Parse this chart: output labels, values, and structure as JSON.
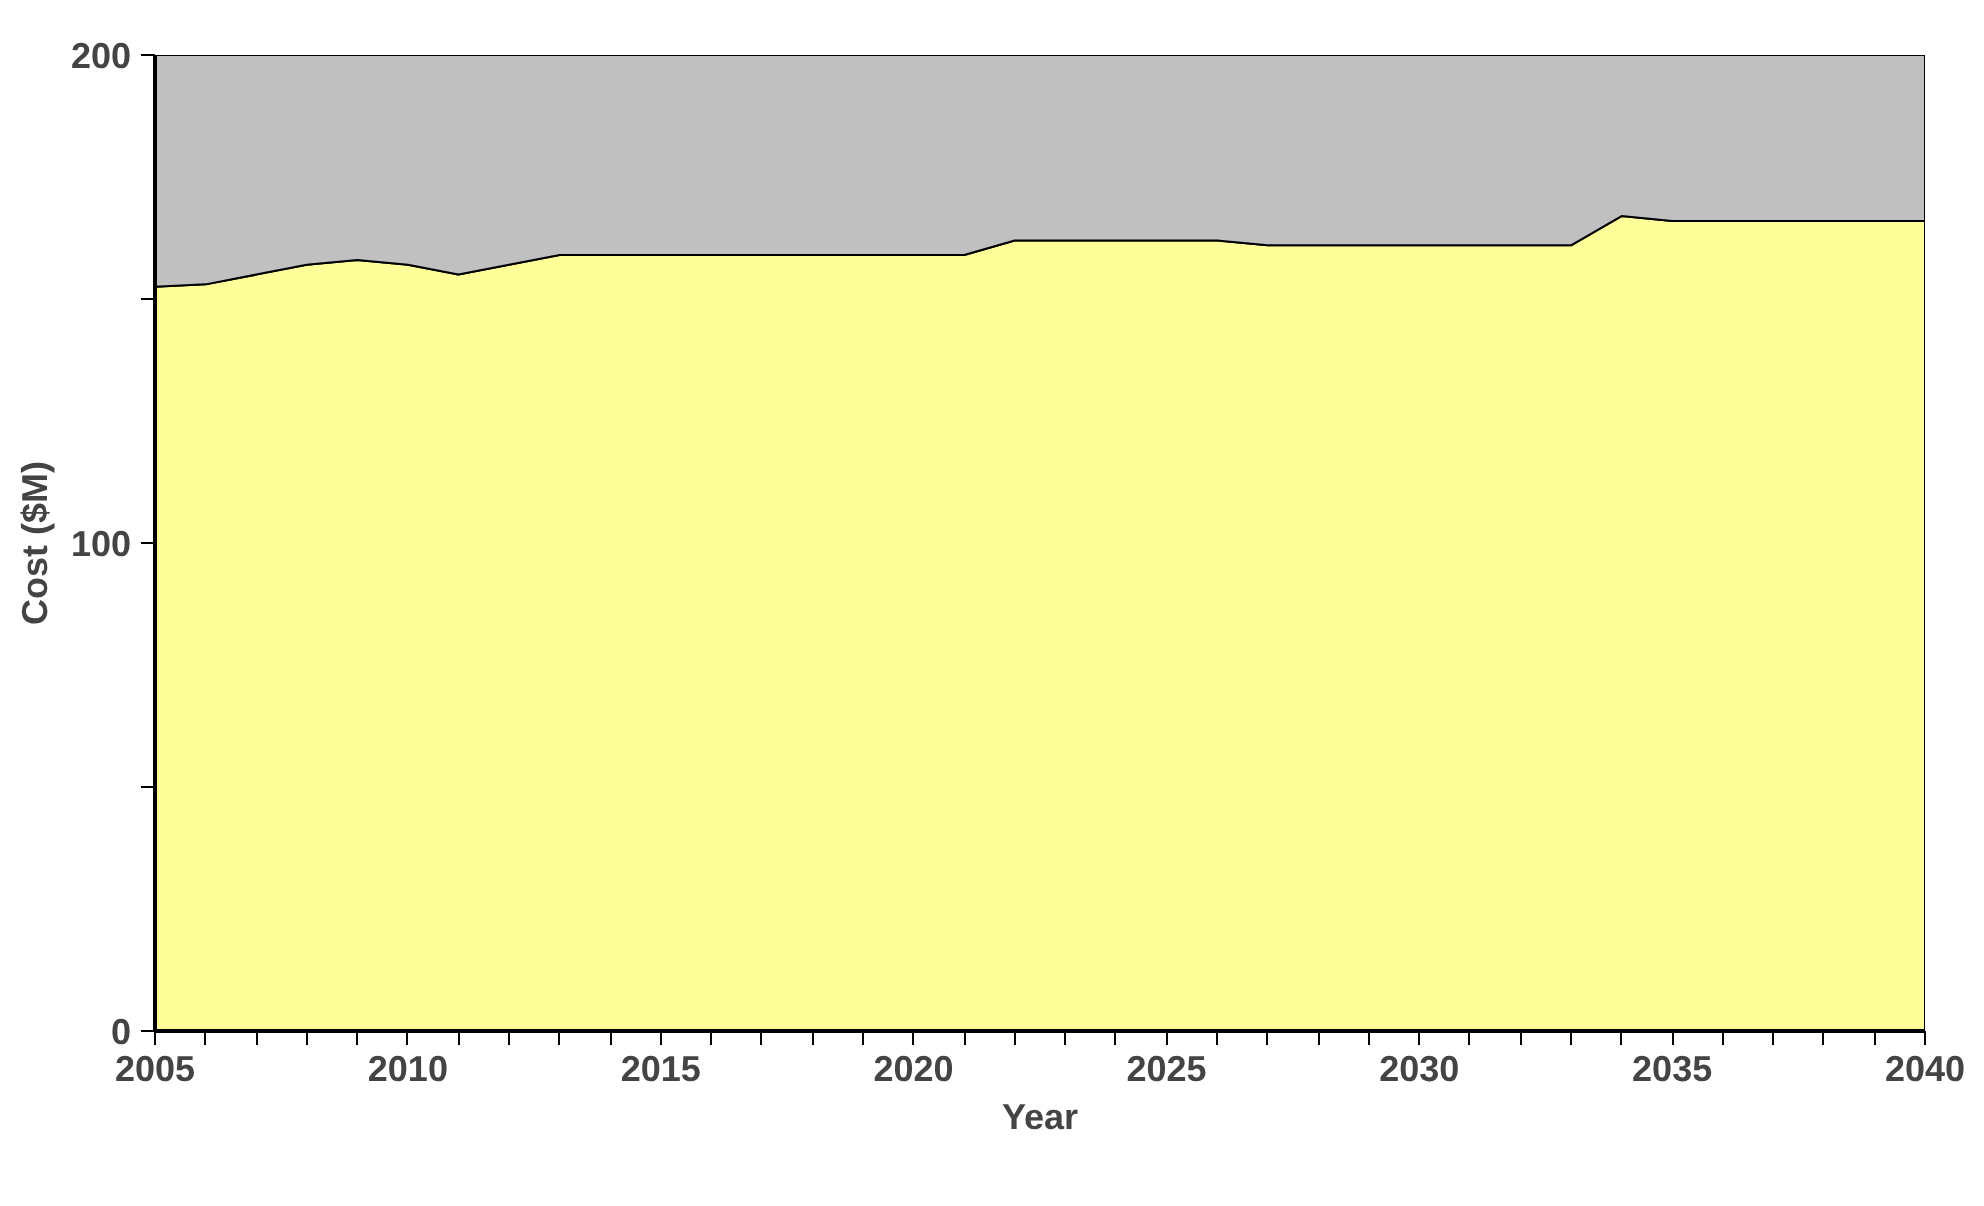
{
  "chart_data": {
    "type": "area",
    "stacked": true,
    "xlabel": "Year",
    "ylabel": "Cost ($M)",
    "x": [
      2005,
      2006,
      2007,
      2008,
      2009,
      2010,
      2011,
      2012,
      2013,
      2014,
      2015,
      2016,
      2017,
      2018,
      2019,
      2020,
      2021,
      2022,
      2023,
      2024,
      2025,
      2026,
      2027,
      2028,
      2029,
      2030,
      2031,
      2032,
      2033,
      2034,
      2035,
      2036,
      2037,
      2038,
      2039,
      2040
    ],
    "series": [
      {
        "color": "#ffff99",
        "values": [
          152.5,
          153,
          155,
          157,
          158,
          157,
          155,
          157,
          159,
          159,
          159,
          159,
          159,
          159,
          159,
          159,
          159,
          162,
          162,
          162,
          162,
          162,
          161,
          161,
          161,
          161,
          161,
          161,
          161,
          167,
          166,
          166,
          166,
          166,
          166,
          166
        ]
      },
      {
        "color": "#c0c0c0",
        "values": [
          47.5,
          47,
          45,
          43,
          42,
          43,
          45,
          43,
          41,
          41,
          41,
          41,
          41,
          41,
          41,
          41,
          41,
          38,
          38,
          38,
          38,
          38,
          39,
          39,
          39,
          39,
          39,
          39,
          39,
          33,
          34,
          34,
          34,
          34,
          34,
          34
        ]
      }
    ],
    "xlim": [
      2005,
      2040
    ],
    "xticks": [
      2005,
      {
        "value": 2006,
        "label": null
      },
      {
        "value": 2007,
        "label": null
      },
      {
        "value": 2008,
        "label": null
      },
      {
        "value": 2009,
        "label": null
      },
      2010,
      {
        "value": 2011,
        "label": null
      },
      {
        "value": 2012,
        "label": null
      },
      {
        "value": 2013,
        "label": null
      },
      {
        "value": 2014,
        "label": null
      },
      2015,
      {
        "value": 2016,
        "label": null
      },
      {
        "value": 2017,
        "label": null
      },
      {
        "value": 2018,
        "label": null
      },
      {
        "value": 2019,
        "label": null
      },
      2020,
      {
        "value": 2021,
        "label": null
      },
      {
        "value": 2022,
        "label": null
      },
      {
        "value": 2023,
        "label": null
      },
      {
        "value": 2024,
        "label": null
      },
      2025,
      {
        "value": 2026,
        "label": null
      },
      {
        "value": 2027,
        "label": null
      },
      {
        "value": 2028,
        "label": null
      },
      {
        "value": 2029,
        "label": null
      },
      2030,
      {
        "value": 2031,
        "label": null
      },
      {
        "value": 2032,
        "label": null
      },
      {
        "value": 2033,
        "label": null
      },
      {
        "value": 2034,
        "label": null
      },
      2035,
      {
        "value": 2036,
        "label": null
      },
      {
        "value": 2037,
        "label": null
      },
      {
        "value": 2038,
        "label": null
      },
      {
        "value": 2039,
        "label": null
      },
      2040
    ],
    "ylim": [
      0,
      200
    ],
    "yticks": [
      0,
      {
        "value": 50,
        "label": null
      },
      100,
      {
        "value": 150,
        "label": null
      },
      200
    ]
  }
}
